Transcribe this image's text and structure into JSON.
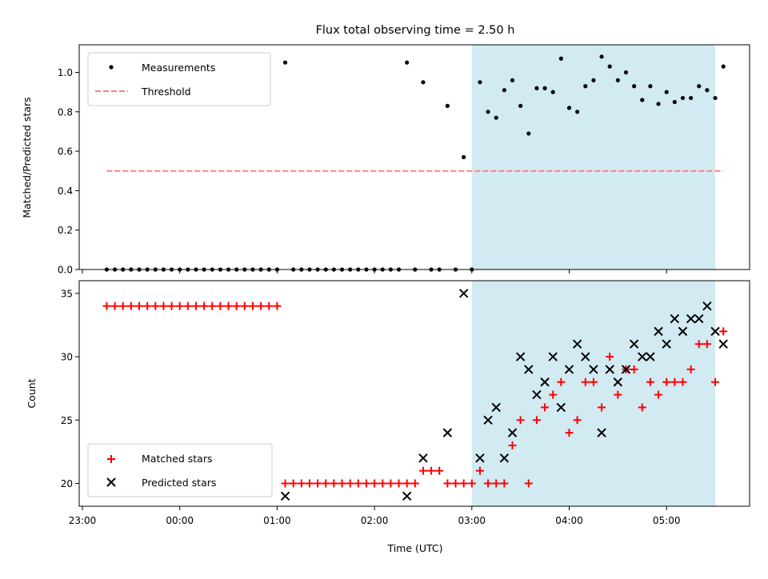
{
  "title": "Flux total observing time = 2.50 h",
  "chart_data": [
    {
      "type": "scatter",
      "ylabel": "Matched/Predicted stars",
      "ylim": [
        0,
        1.14
      ],
      "yticks": [
        "0.0",
        "0.2",
        "0.4",
        "0.6",
        "0.8",
        "1.0"
      ],
      "ytick_values": [
        0,
        0.2,
        0.4,
        0.6,
        0.8,
        1.0
      ],
      "legend_placement": "upper-left",
      "shaded_interval": [
        "03:00",
        "05:30"
      ],
      "series": [
        {
          "name": "Measurements",
          "marker": "dot",
          "color": "#000000",
          "points": [
            [
              "23:15",
              0
            ],
            [
              "23:20",
              0
            ],
            [
              "23:25",
              0
            ],
            [
              "23:30",
              0
            ],
            [
              "23:35",
              0
            ],
            [
              "23:40",
              0
            ],
            [
              "23:45",
              0
            ],
            [
              "23:50",
              0
            ],
            [
              "23:55",
              0
            ],
            [
              "00:00",
              0
            ],
            [
              "00:05",
              0
            ],
            [
              "00:10",
              0
            ],
            [
              "00:15",
              0
            ],
            [
              "00:20",
              0
            ],
            [
              "00:25",
              0
            ],
            [
              "00:30",
              0
            ],
            [
              "00:35",
              0
            ],
            [
              "00:40",
              0
            ],
            [
              "00:45",
              0
            ],
            [
              "00:50",
              0
            ],
            [
              "00:55",
              0
            ],
            [
              "01:00",
              0
            ],
            [
              "01:05",
              1.05
            ],
            [
              "01:10",
              0
            ],
            [
              "01:15",
              0
            ],
            [
              "01:20",
              0
            ],
            [
              "01:25",
              0
            ],
            [
              "01:30",
              0
            ],
            [
              "01:35",
              0
            ],
            [
              "01:40",
              0
            ],
            [
              "01:45",
              0
            ],
            [
              "01:50",
              0
            ],
            [
              "01:55",
              0
            ],
            [
              "02:00",
              0
            ],
            [
              "02:05",
              0
            ],
            [
              "02:10",
              0
            ],
            [
              "02:15",
              0
            ],
            [
              "02:20",
              1.05
            ],
            [
              "02:25",
              0
            ],
            [
              "02:30",
              0.95
            ],
            [
              "02:35",
              0
            ],
            [
              "02:40",
              0
            ],
            [
              "02:45",
              0.83
            ],
            [
              "02:50",
              0
            ],
            [
              "02:55",
              0.57
            ],
            [
              "03:00",
              0
            ],
            [
              "03:05",
              0.95
            ],
            [
              "03:10",
              0.8
            ],
            [
              "03:15",
              0.77
            ],
            [
              "03:20",
              0.91
            ],
            [
              "03:25",
              0.96
            ],
            [
              "03:30",
              0.83
            ],
            [
              "03:35",
              0.69
            ],
            [
              "03:40",
              0.92
            ],
            [
              "03:45",
              0.92
            ],
            [
              "03:50",
              0.9
            ],
            [
              "03:55",
              1.07
            ],
            [
              "04:00",
              0.82
            ],
            [
              "04:05",
              0.8
            ],
            [
              "04:10",
              0.93
            ],
            [
              "04:15",
              0.96
            ],
            [
              "04:20",
              1.08
            ],
            [
              "04:25",
              1.03
            ],
            [
              "04:30",
              0.96
            ],
            [
              "04:35",
              1.0
            ],
            [
              "04:40",
              0.93
            ],
            [
              "04:45",
              0.86
            ],
            [
              "04:50",
              0.93
            ],
            [
              "04:55",
              0.84
            ],
            [
              "05:00",
              0.9
            ],
            [
              "05:05",
              0.85
            ],
            [
              "05:10",
              0.87
            ],
            [
              "05:15",
              0.87
            ],
            [
              "05:20",
              0.93
            ],
            [
              "05:25",
              0.91
            ],
            [
              "05:30",
              0.87
            ],
            [
              "05:35",
              1.03
            ]
          ]
        },
        {
          "name": "Threshold",
          "marker": "dashed-line",
          "color": "#ff8080",
          "value": 0.5,
          "x_range": [
            "23:15",
            "05:35"
          ]
        }
      ]
    },
    {
      "type": "scatter",
      "xlabel": "Time (UTC)",
      "ylabel": "Count",
      "ylim": [
        18.2,
        36
      ],
      "yticks": [
        "20",
        "25",
        "30",
        "35"
      ],
      "ytick_values": [
        20,
        25,
        30,
        35
      ],
      "xticks": [
        "23:00",
        "00:00",
        "01:00",
        "02:00",
        "03:00",
        "04:00",
        "05:00"
      ],
      "legend_placement": "lower-left",
      "shaded_interval": [
        "03:00",
        "05:30"
      ],
      "series": [
        {
          "name": "Matched stars",
          "marker": "plus",
          "color": "#ff0000",
          "points": [
            [
              "23:15",
              34
            ],
            [
              "23:20",
              34
            ],
            [
              "23:25",
              34
            ],
            [
              "23:30",
              34
            ],
            [
              "23:35",
              34
            ],
            [
              "23:40",
              34
            ],
            [
              "23:45",
              34
            ],
            [
              "23:50",
              34
            ],
            [
              "23:55",
              34
            ],
            [
              "00:00",
              34
            ],
            [
              "00:05",
              34
            ],
            [
              "00:10",
              34
            ],
            [
              "00:15",
              34
            ],
            [
              "00:20",
              34
            ],
            [
              "00:25",
              34
            ],
            [
              "00:30",
              34
            ],
            [
              "00:35",
              34
            ],
            [
              "00:40",
              34
            ],
            [
              "00:45",
              34
            ],
            [
              "00:50",
              34
            ],
            [
              "00:55",
              34
            ],
            [
              "01:00",
              34
            ],
            [
              "01:05",
              20
            ],
            [
              "01:10",
              20
            ],
            [
              "01:15",
              20
            ],
            [
              "01:20",
              20
            ],
            [
              "01:25",
              20
            ],
            [
              "01:30",
              20
            ],
            [
              "01:35",
              20
            ],
            [
              "01:40",
              20
            ],
            [
              "01:45",
              20
            ],
            [
              "01:50",
              20
            ],
            [
              "01:55",
              20
            ],
            [
              "02:00",
              20
            ],
            [
              "02:05",
              20
            ],
            [
              "02:10",
              20
            ],
            [
              "02:15",
              20
            ],
            [
              "02:20",
              20
            ],
            [
              "02:25",
              20
            ],
            [
              "02:30",
              21
            ],
            [
              "02:35",
              21
            ],
            [
              "02:40",
              21
            ],
            [
              "02:45",
              20
            ],
            [
              "02:50",
              20
            ],
            [
              "02:55",
              20
            ],
            [
              "03:00",
              20
            ],
            [
              "03:05",
              21
            ],
            [
              "03:10",
              20
            ],
            [
              "03:15",
              20
            ],
            [
              "03:20",
              20
            ],
            [
              "03:25",
              23
            ],
            [
              "03:30",
              25
            ],
            [
              "03:35",
              20
            ],
            [
              "03:40",
              25
            ],
            [
              "03:45",
              26
            ],
            [
              "03:50",
              27
            ],
            [
              "03:55",
              28
            ],
            [
              "04:00",
              24
            ],
            [
              "04:05",
              25
            ],
            [
              "04:10",
              28
            ],
            [
              "04:15",
              28
            ],
            [
              "04:20",
              26
            ],
            [
              "04:25",
              30
            ],
            [
              "04:30",
              27
            ],
            [
              "04:35",
              29
            ],
            [
              "04:40",
              29
            ],
            [
              "04:45",
              26
            ],
            [
              "04:50",
              28
            ],
            [
              "04:55",
              27
            ],
            [
              "05:00",
              28
            ],
            [
              "05:05",
              28
            ],
            [
              "05:10",
              28
            ],
            [
              "05:15",
              29
            ],
            [
              "05:20",
              31
            ],
            [
              "05:25",
              31
            ],
            [
              "05:30",
              28
            ],
            [
              "05:35",
              32
            ]
          ]
        },
        {
          "name": "Predicted stars",
          "marker": "x",
          "color": "#000000",
          "points": [
            [
              "01:05",
              19
            ],
            [
              "02:20",
              19
            ],
            [
              "02:30",
              22
            ],
            [
              "02:45",
              24
            ],
            [
              "02:55",
              35
            ],
            [
              "03:05",
              22
            ],
            [
              "03:10",
              25
            ],
            [
              "03:15",
              26
            ],
            [
              "03:20",
              22
            ],
            [
              "03:25",
              24
            ],
            [
              "03:30",
              30
            ],
            [
              "03:35",
              29
            ],
            [
              "03:40",
              27
            ],
            [
              "03:45",
              28
            ],
            [
              "03:50",
              30
            ],
            [
              "03:55",
              26
            ],
            [
              "04:00",
              29
            ],
            [
              "04:05",
              31
            ],
            [
              "04:10",
              30
            ],
            [
              "04:15",
              29
            ],
            [
              "04:20",
              24
            ],
            [
              "04:25",
              29
            ],
            [
              "04:30",
              28
            ],
            [
              "04:35",
              29
            ],
            [
              "04:40",
              31
            ],
            [
              "04:45",
              30
            ],
            [
              "04:50",
              30
            ],
            [
              "04:55",
              32
            ],
            [
              "05:00",
              31
            ],
            [
              "05:05",
              33
            ],
            [
              "05:10",
              32
            ],
            [
              "05:15",
              33
            ],
            [
              "05:20",
              33
            ],
            [
              "05:25",
              34
            ],
            [
              "05:30",
              32
            ],
            [
              "05:35",
              31
            ]
          ]
        }
      ]
    }
  ]
}
